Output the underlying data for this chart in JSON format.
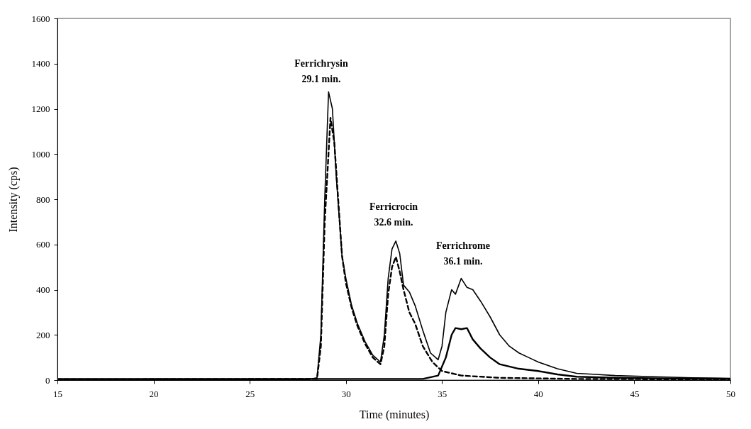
{
  "chart_data": {
    "type": "line",
    "xlabel": "Time (minutes)",
    "ylabel": "Intensity (cps)",
    "xlim": [
      15,
      50
    ],
    "xticks": [
      15,
      20,
      25,
      30,
      35,
      40,
      45,
      50
    ],
    "ylim": [
      0,
      1600
    ],
    "yticks": [
      0,
      200,
      400,
      600,
      800,
      1000,
      1200,
      1400,
      1600
    ],
    "grid": false,
    "marker": "none",
    "annotations": [
      "Ferrichrysin\n29.1 min.",
      "Ferricrocin\n32.6 min.",
      "Ferrichrome\n36.1 min."
    ],
    "series": [
      {
        "color": "#000000",
        "line_style": "solid",
        "x": [
          15,
          28,
          28.5,
          28.7,
          28.9,
          29.1,
          29.3,
          29.5,
          29.8,
          30,
          30.3,
          30.6,
          31,
          31.4,
          31.8,
          32.0,
          32.2,
          32.4,
          32.6,
          32.8,
          33.0,
          33.3,
          33.6,
          34,
          34.4,
          34.8,
          35.0,
          35.2,
          35.5,
          35.7,
          36.0,
          36.3,
          36.6,
          37,
          37.5,
          38,
          38.5,
          39,
          39.5,
          40,
          41,
          42,
          43,
          44,
          46,
          48,
          50
        ],
        "values": [
          3,
          2,
          10,
          200,
          800,
          1275,
          1200,
          900,
          550,
          450,
          330,
          250,
          170,
          110,
          80,
          200,
          450,
          580,
          615,
          560,
          420,
          390,
          330,
          220,
          120,
          90,
          150,
          300,
          400,
          380,
          450,
          410,
          400,
          350,
          280,
          200,
          150,
          120,
          100,
          80,
          50,
          30,
          25,
          20,
          15,
          10,
          8
        ]
      },
      {
        "color": "#000000",
        "line_style": "dashed",
        "x": [
          15,
          28.5,
          28.7,
          28.9,
          29.2,
          29.4,
          29.6,
          29.8,
          30,
          30.3,
          30.6,
          31,
          31.4,
          31.8,
          32.0,
          32.2,
          32.4,
          32.6,
          32.8,
          33.0,
          33.3,
          33.6,
          34,
          34.5,
          35,
          36,
          38,
          42,
          50
        ],
        "values": [
          3,
          5,
          150,
          700,
          1160,
          1050,
          800,
          550,
          430,
          320,
          240,
          160,
          100,
          70,
          150,
          380,
          500,
          545,
          480,
          400,
          300,
          250,
          150,
          80,
          40,
          20,
          10,
          5,
          3
        ]
      },
      {
        "color": "#000000",
        "line_style": "solid",
        "x": [
          15,
          34,
          34.8,
          35.2,
          35.5,
          35.7,
          36.0,
          36.3,
          36.6,
          37,
          37.5,
          38,
          38.5,
          39,
          40,
          41,
          42,
          44,
          46,
          50
        ],
        "values": [
          5,
          5,
          20,
          100,
          200,
          230,
          225,
          230,
          180,
          140,
          100,
          70,
          60,
          50,
          40,
          25,
          15,
          10,
          8,
          5
        ]
      }
    ]
  }
}
